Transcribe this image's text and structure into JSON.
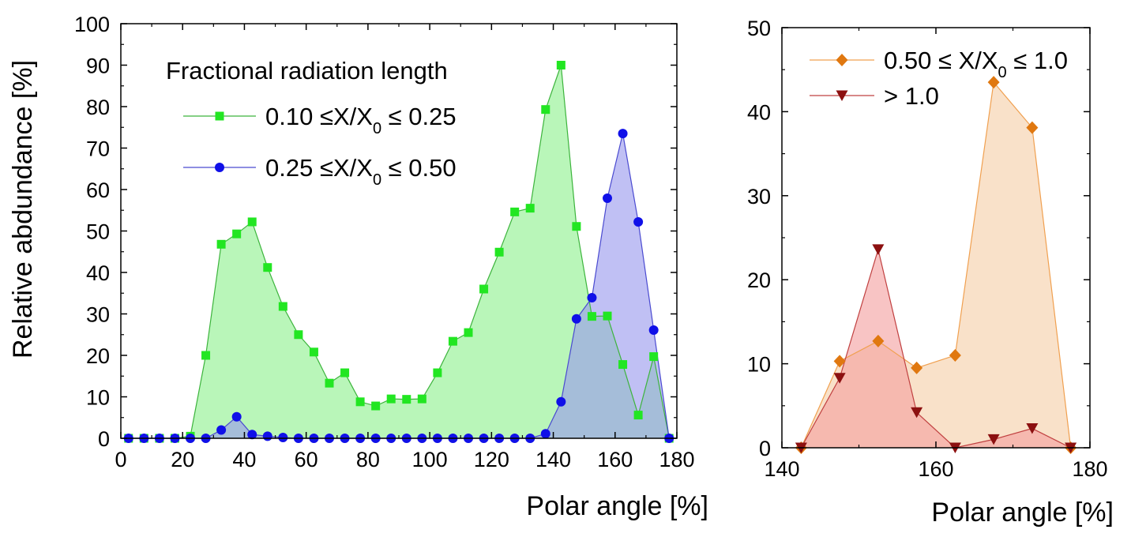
{
  "chart_data": [
    {
      "type": "area",
      "xlabel": "Polar angle [%]",
      "ylabel": "Relative abdundance [%]",
      "xlim": [
        0,
        180
      ],
      "ylim": [
        0,
        100
      ],
      "xticks": [
        "0",
        "20",
        "40",
        "60",
        "80",
        "100",
        "120",
        "140",
        "160",
        "180"
      ],
      "yticks": [
        "0",
        "10",
        "20",
        "30",
        "40",
        "50",
        "60",
        "70",
        "80",
        "90",
        "100"
      ],
      "legend_title": "Fractional radiation length",
      "series": [
        {
          "name": "0.10 ≤ X/X0 ≤ 0.25",
          "label_pre": "0.10 ≤X/X",
          "label_sub": "0",
          "label_post": " ≤ 0.25",
          "marker": "square",
          "line_color": "#3cb43c",
          "marker_color": "#22e622",
          "fill_color": "#8ef08e",
          "x": [
            2.5,
            7.5,
            12.5,
            17.5,
            22.5,
            27.5,
            32.5,
            37.5,
            42.5,
            47.5,
            52.5,
            57.5,
            62.5,
            67.5,
            72.5,
            77.5,
            82.5,
            87.5,
            92.5,
            97.5,
            102.5,
            107.5,
            112.5,
            117.5,
            122.5,
            127.5,
            132.5,
            137.5,
            142.5,
            147.5,
            152.5,
            157.5,
            162.5,
            167.5,
            172.5,
            177.5
          ],
          "y": [
            0,
            0,
            0,
            0,
            0.5,
            20,
            46.8,
            49.3,
            52.2,
            41.2,
            31.8,
            25,
            20.8,
            13.3,
            15.8,
            8.8,
            7.8,
            9.5,
            9.4,
            9.5,
            15.8,
            23.4,
            25.5,
            36,
            44.9,
            54.6,
            55.5,
            79.3,
            90,
            51.1,
            29.4,
            29.5,
            17.8,
            5.6,
            19.7,
            0
          ]
        },
        {
          "name": "0.25 ≤ X/X0 ≤ 0.50",
          "label_pre": "0.25 ≤X/X",
          "label_sub": "0",
          "label_post": " ≤ 0.50",
          "marker": "circle",
          "line_color": "#4a4ad0",
          "marker_color": "#1010e8",
          "fill_color": "#9a9aee",
          "x": [
            2.5,
            7.5,
            12.5,
            17.5,
            22.5,
            27.5,
            32.5,
            37.5,
            42.5,
            47.5,
            52.5,
            57.5,
            62.5,
            67.5,
            72.5,
            77.5,
            82.5,
            87.5,
            92.5,
            97.5,
            102.5,
            107.5,
            112.5,
            117.5,
            122.5,
            127.5,
            132.5,
            137.5,
            142.5,
            147.5,
            152.5,
            157.5,
            162.5,
            167.5,
            172.5,
            177.5
          ],
          "y": [
            0,
            0,
            0,
            0,
            0,
            0,
            2,
            5.2,
            0.9,
            0.5,
            0.2,
            0,
            0,
            0,
            0,
            0,
            0,
            0,
            0,
            0,
            0,
            0,
            0,
            0,
            0,
            0,
            0,
            1.1,
            8.8,
            28.8,
            33.9,
            57.9,
            73.5,
            52.2,
            26.1,
            0
          ]
        }
      ]
    },
    {
      "type": "area",
      "xlabel": "Polar angle [%]",
      "ylabel": "",
      "xlim": [
        140,
        180
      ],
      "ylim": [
        0,
        50
      ],
      "xticks": [
        "140",
        "160",
        "180"
      ],
      "yticks": [
        "0",
        "10",
        "20",
        "30",
        "40",
        "50"
      ],
      "series": [
        {
          "name": "0.50 ≤ X/X0 ≤ 1.0",
          "label_pre": "0.50 ≤ X/X",
          "label_sub": "0",
          "label_post": " ≤ 1.0",
          "marker": "diamond",
          "line_color": "#f0a050",
          "marker_color": "#e07810",
          "fill_color": "#f5cfa8",
          "x": [
            142.5,
            147.5,
            152.5,
            157.5,
            162.5,
            167.5,
            172.5,
            177.5
          ],
          "y": [
            0,
            10.3,
            12.7,
            9.5,
            11,
            43.5,
            38.1,
            0
          ]
        },
        {
          "name": "> 1.0",
          "label_pre": " > 1.0",
          "label_sub": "",
          "label_post": "",
          "marker": "triangle-down",
          "line_color": "#c04040",
          "marker_color": "#8c1010",
          "fill_color": "#f4a0a0",
          "x": [
            142.5,
            147.5,
            152.5,
            157.5,
            162.5,
            167.5,
            172.5,
            177.5
          ],
          "y": [
            0,
            8.3,
            23.6,
            4.2,
            0,
            1,
            2.3,
            0
          ]
        }
      ]
    }
  ]
}
